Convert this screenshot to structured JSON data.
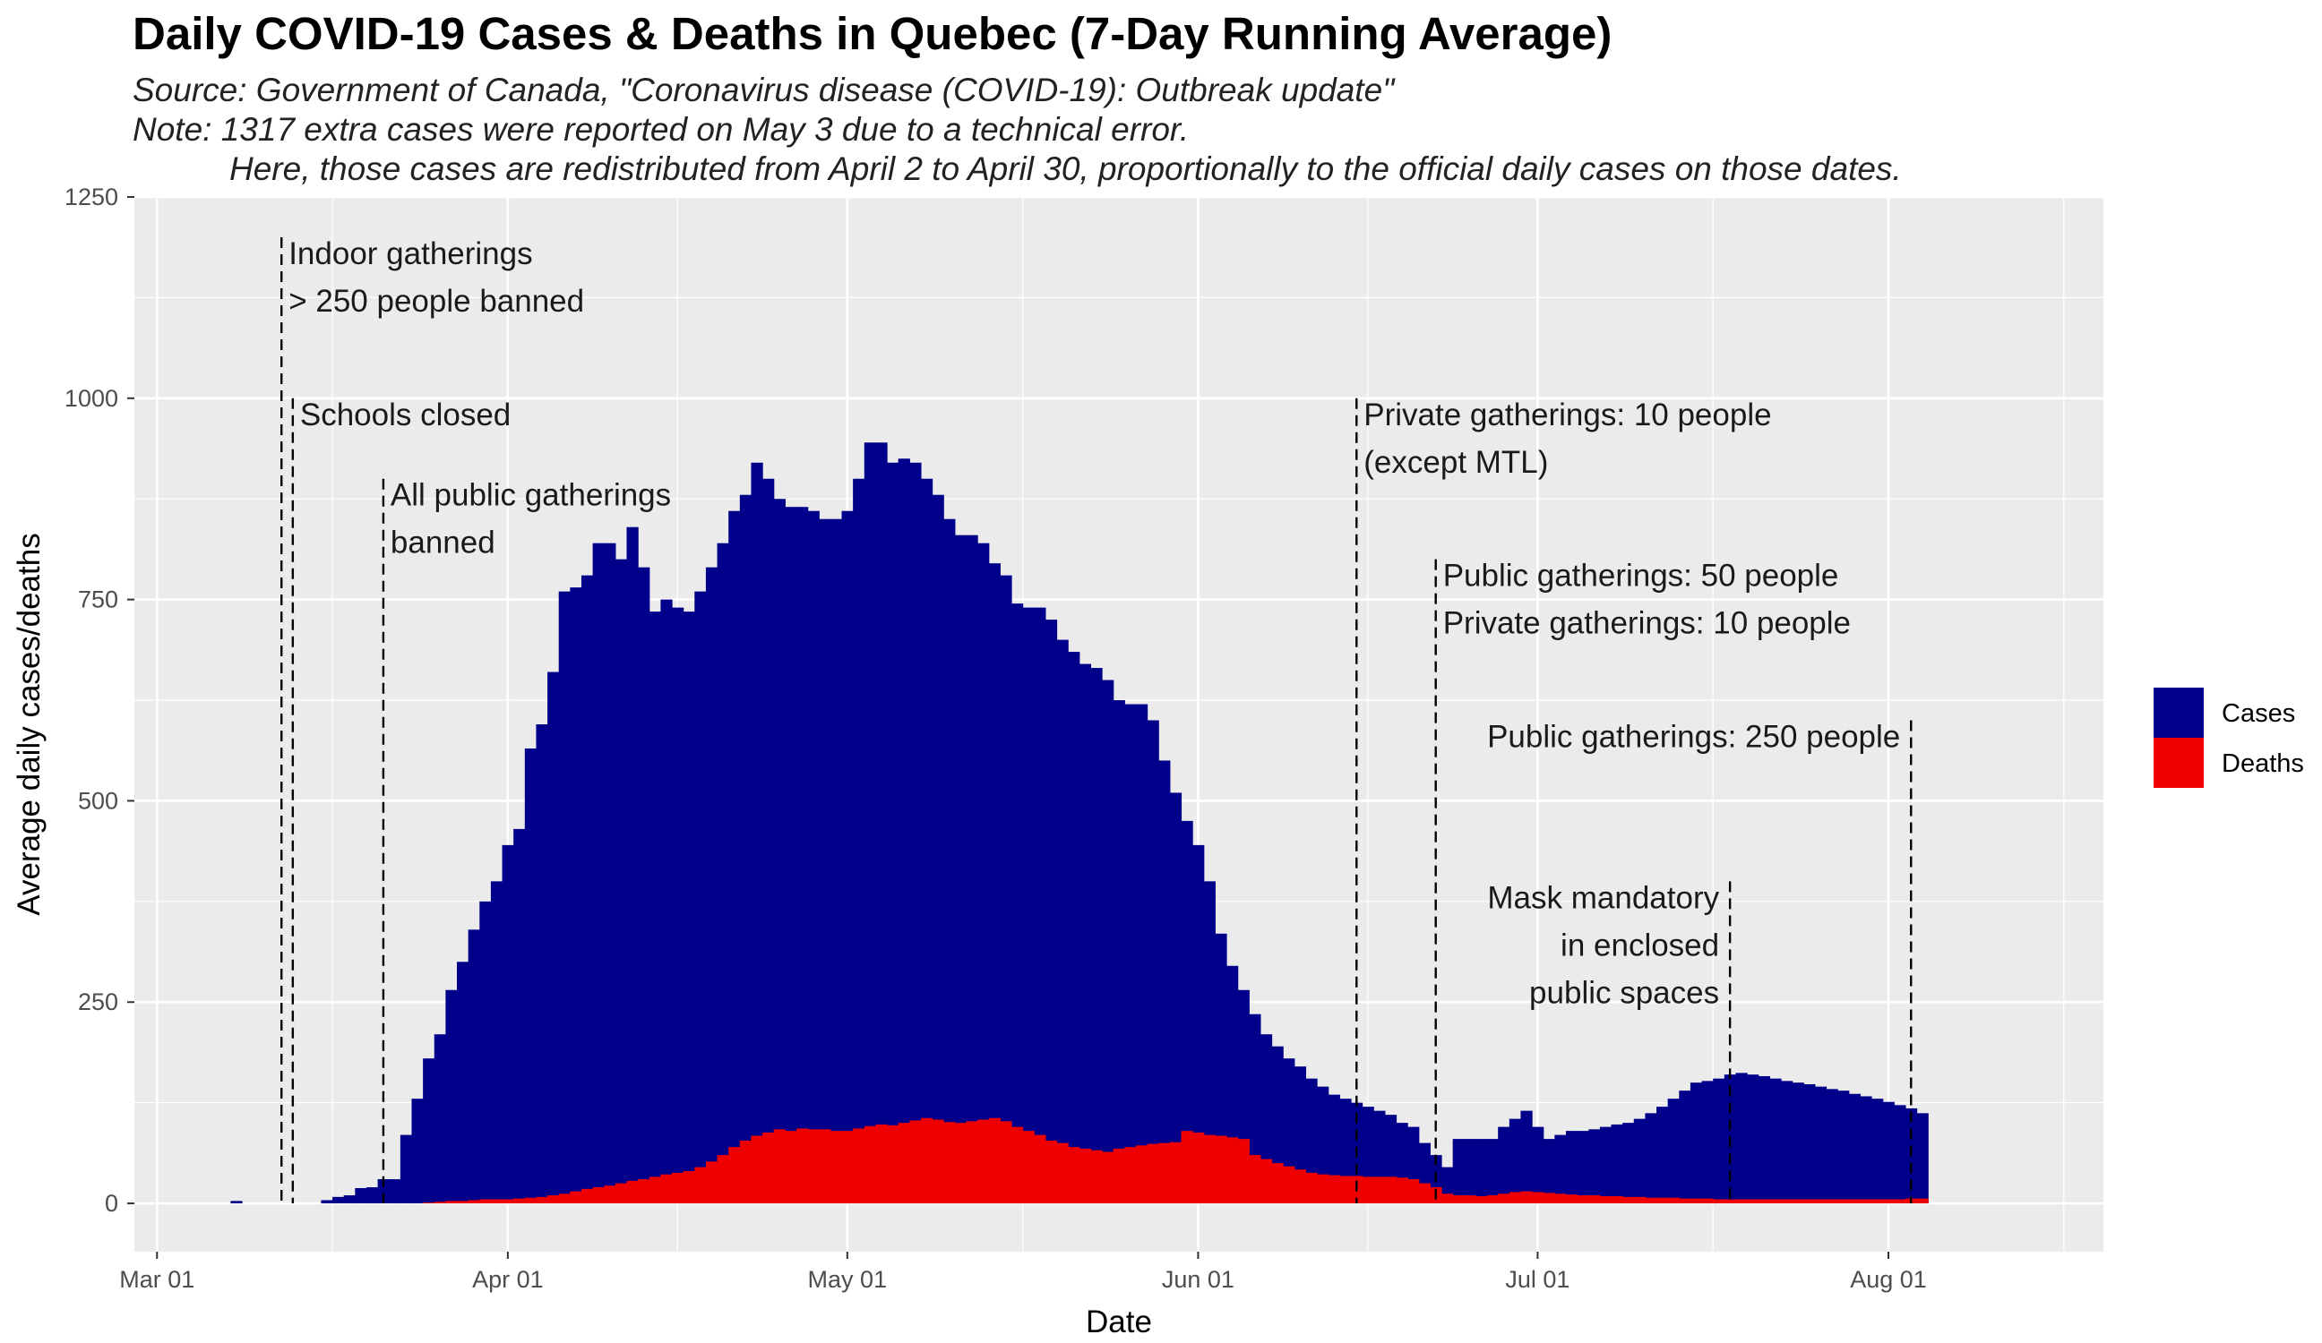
{
  "title": "Daily COVID-19 Cases & Deaths in Quebec (7-Day Running Average)",
  "subtitle_lines": [
    "Source: Government of Canada, \"Coronavirus disease (COVID-19): Outbreak update\"",
    "Note: 1317 extra cases were reported on May 3 due to a technical error.",
    "Here, those cases are redistributed from April 2 to April 30, proportionally to the official daily cases on those dates."
  ],
  "chart_data": {
    "type": "bar",
    "xlabel": "Date",
    "ylabel": "Average daily cases/deaths",
    "xlim": [
      "2020-02-28",
      "2020-08-20"
    ],
    "ylim": [
      -60,
      1250
    ],
    "x_ticks": [
      {
        "date": "2020-03-01",
        "label": "Mar 01"
      },
      {
        "date": "2020-04-01",
        "label": "Apr 01"
      },
      {
        "date": "2020-05-01",
        "label": "May 01"
      },
      {
        "date": "2020-06-01",
        "label": "Jun 01"
      },
      {
        "date": "2020-07-01",
        "label": "Jul 01"
      },
      {
        "date": "2020-08-01",
        "label": "Aug 01"
      }
    ],
    "y_ticks": [
      0,
      250,
      500,
      750,
      1000,
      1250
    ],
    "grid": true,
    "legend_position": "right",
    "colors": {
      "Cases": "#00008B",
      "Deaths": "#EE0000",
      "panel": "#EBEBEB",
      "grid": "#FFFFFF"
    },
    "series": [
      {
        "name": "Cases",
        "color": "#00008B",
        "start": "2020-03-08",
        "values": [
          3,
          0,
          0,
          0,
          0,
          0,
          0,
          0,
          4,
          8,
          10,
          19,
          20,
          30,
          30,
          85,
          130,
          180,
          210,
          265,
          300,
          340,
          375,
          400,
          445,
          465,
          565,
          595,
          660,
          760,
          765,
          780,
          820,
          820,
          800,
          840,
          790,
          735,
          750,
          740,
          735,
          760,
          790,
          820,
          860,
          880,
          920,
          900,
          875,
          865,
          865,
          860,
          850,
          850,
          860,
          900,
          945,
          945,
          920,
          925,
          920,
          900,
          880,
          850,
          830,
          830,
          820,
          795,
          780,
          745,
          740,
          740,
          725,
          700,
          685,
          670,
          665,
          650,
          625,
          620,
          620,
          600,
          550,
          510,
          475,
          445,
          400,
          335,
          295,
          265,
          235,
          210,
          195,
          180,
          170,
          155,
          145,
          135,
          130,
          125,
          120,
          115,
          110,
          100,
          95,
          75,
          60,
          45,
          80,
          80,
          80,
          80,
          95,
          105,
          115,
          95,
          80,
          85,
          90,
          90,
          92,
          95,
          98,
          100,
          105,
          112,
          120,
          130,
          140,
          150,
          152,
          155,
          160,
          162,
          160,
          158,
          155,
          152,
          150,
          148,
          145,
          142,
          140,
          136,
          133,
          130,
          126,
          122,
          118,
          112
        ]
      },
      {
        "name": "Deaths",
        "color": "#EE0000",
        "start": "2020-03-08",
        "values": [
          0,
          0,
          0,
          0,
          0,
          0,
          0,
          0,
          0,
          0,
          0,
          0,
          0,
          0,
          0,
          0,
          0,
          1,
          2,
          3,
          3,
          4,
          5,
          5,
          5,
          6,
          7,
          8,
          10,
          12,
          15,
          18,
          20,
          22,
          25,
          28,
          30,
          33,
          36,
          38,
          40,
          45,
          52,
          60,
          70,
          78,
          84,
          88,
          92,
          90,
          93,
          92,
          92,
          90,
          90,
          93,
          96,
          98,
          97,
          100,
          103,
          106,
          104,
          101,
          100,
          102,
          104,
          106,
          102,
          95,
          90,
          85,
          78,
          75,
          70,
          68,
          66,
          64,
          68,
          70,
          72,
          74,
          75,
          76,
          90,
          88,
          85,
          84,
          82,
          80,
          60,
          55,
          50,
          46,
          42,
          38,
          36,
          35,
          34,
          34,
          33,
          33,
          33,
          32,
          30,
          25,
          20,
          12,
          10,
          10,
          9,
          10,
          12,
          14,
          15,
          14,
          13,
          12,
          11,
          10,
          10,
          9,
          9,
          8,
          8,
          7,
          7,
          7,
          6,
          6,
          6,
          5,
          5,
          5,
          5,
          5,
          5,
          5,
          5,
          5,
          5,
          5,
          5,
          5,
          5,
          5,
          5,
          5,
          6,
          6
        ]
      }
    ],
    "annotations": [
      {
        "date": "2020-03-12",
        "y_top": 1200,
        "lines": [
          "Indoor gatherings",
          "> 250 people banned"
        ],
        "side": "right"
      },
      {
        "date": "2020-03-13",
        "y_top": 1000,
        "lines": [
          "Schools closed"
        ],
        "side": "right"
      },
      {
        "date": "2020-03-21",
        "y_top": 900,
        "lines": [
          "All public gatherings",
          "banned"
        ],
        "side": "right"
      },
      {
        "date": "2020-06-15",
        "y_top": 1000,
        "lines": [
          "Private gatherings: 10 people",
          "(except MTL)"
        ],
        "side": "right"
      },
      {
        "date": "2020-06-22",
        "y_top": 800,
        "lines": [
          "Public gatherings: 50 people",
          "Private gatherings: 10 people"
        ],
        "side": "right"
      },
      {
        "date": "2020-07-18",
        "y_top": 400,
        "lines": [
          "Mask mandatory",
          "in enclosed",
          "public spaces"
        ],
        "side": "left"
      },
      {
        "date": "2020-08-03",
        "y_top": 600,
        "lines": [
          "Public gatherings: 250 people"
        ],
        "side": "left"
      }
    ]
  }
}
